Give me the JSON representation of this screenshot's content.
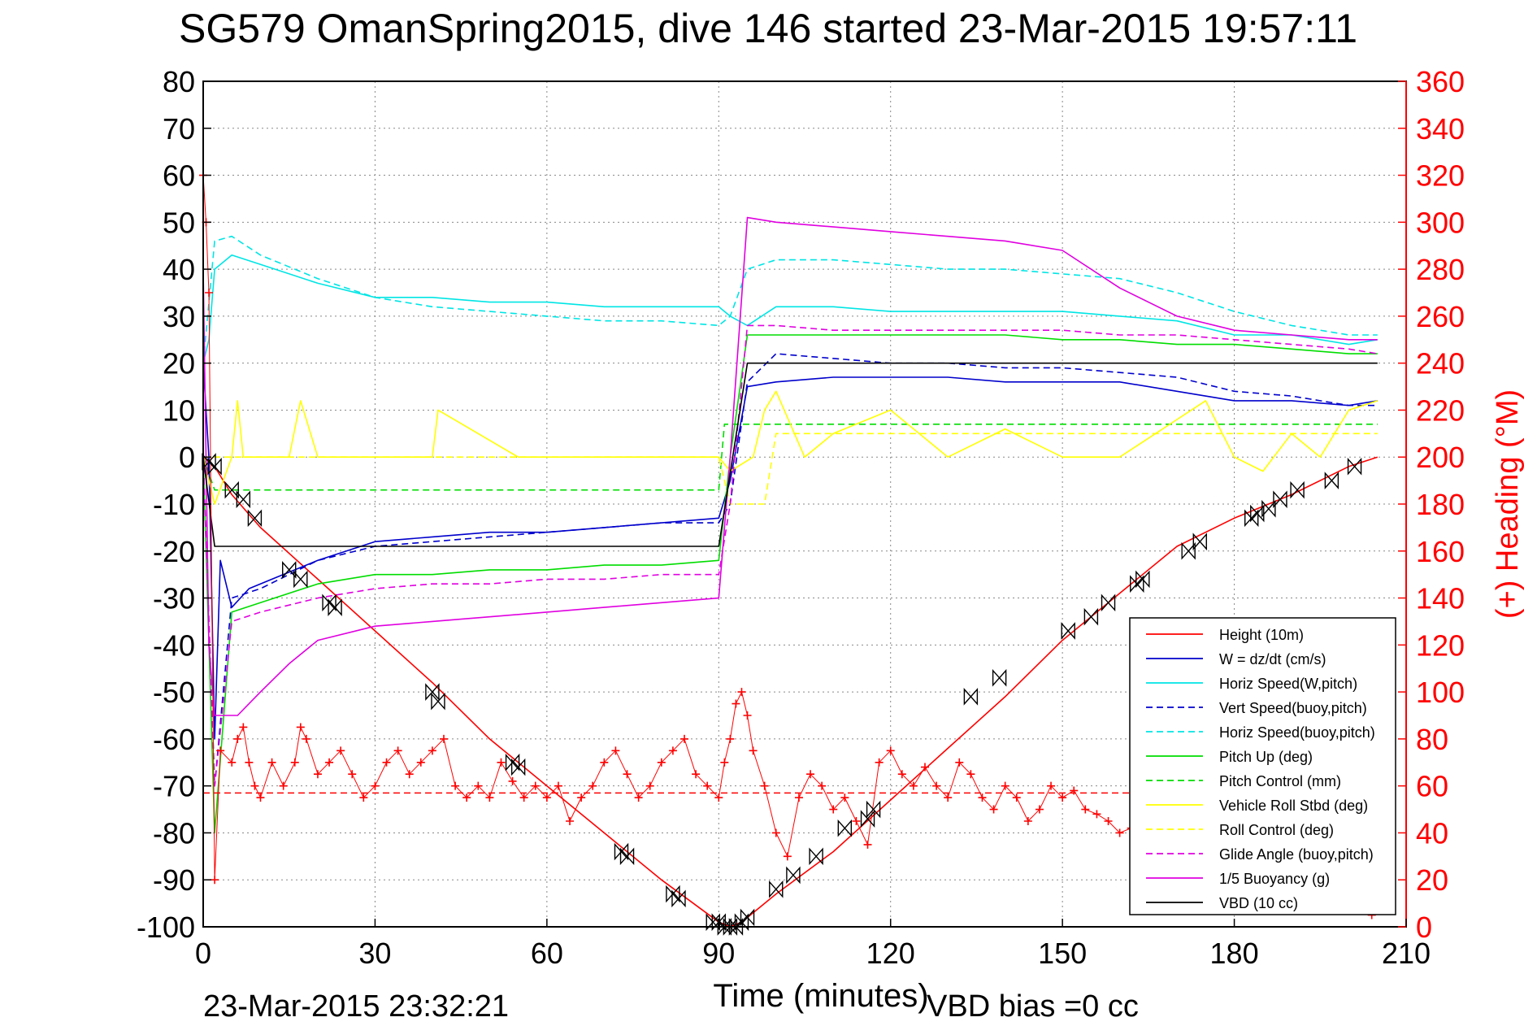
{
  "chart_data": {
    "type": "line",
    "title": "SG579 OmanSpring2015, dive 146 started 23-Mar-2015 19:57:11",
    "xlabel": "Time (minutes)",
    "ylabel_right": "(+) Heading (°M)",
    "footer_left": "23-Mar-2015 23:32:21",
    "footer_right": "VBD bias =0 cc",
    "xlim": [
      0,
      210
    ],
    "ylim_left": [
      -100,
      80
    ],
    "ylim_right": [
      0,
      360
    ],
    "xticks": [
      "0",
      "30",
      "60",
      "90",
      "120",
      "150",
      "180",
      "210"
    ],
    "yticks_left": [
      "80",
      "70",
      "60",
      "50",
      "40",
      "30",
      "20",
      "10",
      "0",
      "-10",
      "-20",
      "-30",
      "-40",
      "-50",
      "-60",
      "-70",
      "-80",
      "-90",
      "-100"
    ],
    "yticks_right": [
      "360",
      "340",
      "320",
      "300",
      "280",
      "260",
      "240",
      "220",
      "200",
      "180",
      "160",
      "140",
      "120",
      "100",
      "80",
      "60",
      "40",
      "20",
      "0"
    ],
    "grid": true,
    "legend_position": "bottom-right",
    "colors": {
      "height": "#ff0000",
      "w": "#0000cc",
      "horiz": "#00e5e5",
      "pitch": "#00dd00",
      "roll": "#ffff00",
      "buoy": "#e000e0",
      "vbd": "#000000",
      "heading": "#ff0000",
      "axis_right": "#ff0000"
    },
    "series": [
      {
        "name": "Height (10m)",
        "style": "solid",
        "color": "#ff0000",
        "x": [
          0,
          1,
          2,
          5,
          10,
          20,
          30,
          40,
          50,
          60,
          70,
          80,
          90,
          92,
          94,
          96,
          100,
          110,
          120,
          130,
          140,
          150,
          160,
          170,
          180,
          190,
          200,
          205
        ],
        "y": [
          0,
          -1,
          -2,
          -8,
          -15,
          -26,
          -37,
          -48,
          -60,
          -70,
          -80,
          -90,
          -99,
          -100,
          -99,
          -97,
          -93,
          -84,
          -73,
          -62,
          -51,
          -39,
          -29,
          -19,
          -13,
          -8,
          -2,
          0
        ]
      },
      {
        "name": "W = dz/dt (cm/s)",
        "style": "solid",
        "color": "#0000cc",
        "x": [
          0,
          1,
          2,
          3,
          5,
          8,
          12,
          20,
          30,
          40,
          50,
          60,
          70,
          80,
          90,
          92,
          95,
          100,
          110,
          120,
          130,
          140,
          150,
          160,
          170,
          180,
          190,
          200,
          205
        ],
        "y": [
          20,
          0,
          -60,
          -22,
          -32,
          -28,
          -26,
          -22,
          -18,
          -17,
          -16,
          -16,
          -15,
          -14,
          -13,
          -5,
          15,
          16,
          17,
          17,
          17,
          16,
          16,
          16,
          14,
          12,
          12,
          11,
          12
        ]
      },
      {
        "name": "Horiz Speed(W,pitch)",
        "style": "solid",
        "color": "#00e5e5",
        "x": [
          0,
          1,
          2,
          5,
          10,
          20,
          30,
          40,
          50,
          60,
          70,
          80,
          90,
          92,
          95,
          100,
          110,
          120,
          130,
          140,
          150,
          160,
          170,
          180,
          190,
          200,
          205
        ],
        "y": [
          20,
          25,
          40,
          43,
          41,
          37,
          34,
          34,
          33,
          33,
          32,
          32,
          32,
          30,
          28,
          32,
          32,
          31,
          31,
          31,
          31,
          30,
          29,
          26,
          26,
          24,
          25
        ]
      },
      {
        "name": "Vert Speed(buoy,pitch)",
        "style": "dashed",
        "color": "#0000cc",
        "x": [
          0,
          2,
          5,
          10,
          20,
          30,
          40,
          50,
          60,
          70,
          80,
          90,
          92,
          95,
          100,
          110,
          120,
          130,
          140,
          150,
          160,
          170,
          180,
          190,
          200,
          205
        ],
        "y": [
          0,
          -70,
          -30,
          -28,
          -22,
          -19,
          -18,
          -17,
          -16,
          -15,
          -14,
          -14,
          -10,
          16,
          22,
          21,
          20,
          20,
          19,
          19,
          18,
          17,
          14,
          13,
          11,
          11
        ]
      },
      {
        "name": "Horiz Speed(buoy,pitch)",
        "style": "dashed",
        "color": "#00e5e5",
        "x": [
          0,
          2,
          5,
          10,
          20,
          30,
          40,
          50,
          60,
          70,
          80,
          90,
          92,
          95,
          100,
          110,
          120,
          130,
          140,
          150,
          160,
          170,
          180,
          190,
          200,
          205
        ],
        "y": [
          20,
          46,
          47,
          43,
          38,
          34,
          32,
          31,
          30,
          29,
          29,
          28,
          30,
          40,
          42,
          42,
          41,
          40,
          40,
          39,
          38,
          35,
          31,
          28,
          26,
          26
        ]
      },
      {
        "name": "Pitch Up (deg)",
        "style": "solid",
        "color": "#00dd00",
        "x": [
          0,
          2,
          5,
          10,
          20,
          30,
          40,
          50,
          60,
          70,
          80,
          90,
          92,
          95,
          100,
          110,
          120,
          130,
          140,
          150,
          160,
          170,
          180,
          190,
          200,
          205
        ],
        "y": [
          0,
          -80,
          -33,
          -31,
          -27,
          -25,
          -25,
          -24,
          -24,
          -23,
          -23,
          -22,
          0,
          26,
          26,
          26,
          26,
          26,
          26,
          25,
          25,
          24,
          24,
          23,
          22,
          22
        ]
      },
      {
        "name": "Pitch Control (mm)",
        "style": "dashed",
        "color": "#00dd00",
        "x": [
          0,
          2,
          90,
          91,
          205
        ],
        "y": [
          0,
          -7,
          -7,
          7,
          7
        ]
      },
      {
        "name": "Vehicle Roll Stbd (deg)",
        "style": "solid",
        "color": "#ffff00",
        "x": [
          0,
          2,
          5,
          6,
          7,
          10,
          15,
          17,
          20,
          30,
          40,
          41,
          55,
          74,
          83,
          90,
          92,
          96,
          98,
          100,
          105,
          110,
          120,
          130,
          140,
          150,
          160,
          170,
          175,
          180,
          185,
          190,
          195,
          200,
          205
        ],
        "y": [
          0,
          -10,
          0,
          12,
          0,
          0,
          0,
          12,
          0,
          0,
          0,
          10,
          0,
          0,
          0,
          0,
          -3,
          0,
          10,
          14,
          0,
          5,
          10,
          0,
          6,
          0,
          0,
          8,
          12,
          0,
          -3,
          5,
          0,
          10,
          12
        ]
      },
      {
        "name": "Roll Control (deg)",
        "style": "dashed",
        "color": "#ffff00",
        "x": [
          0,
          2,
          90,
          92,
          98,
          100,
          205
        ],
        "y": [
          0,
          0,
          0,
          -10,
          -10,
          5,
          5
        ]
      },
      {
        "name": "Glide Angle (buoy,pitch)",
        "style": "dashed",
        "color": "#e000e0",
        "x": [
          0,
          2,
          5,
          10,
          20,
          30,
          40,
          50,
          60,
          70,
          80,
          90,
          92,
          95,
          100,
          110,
          120,
          130,
          140,
          150,
          160,
          170,
          180,
          190,
          200,
          205
        ],
        "y": [
          0,
          -70,
          -35,
          -33,
          -30,
          -28,
          -27,
          -27,
          -26,
          -26,
          -25,
          -25,
          -10,
          28,
          28,
          27,
          27,
          27,
          27,
          27,
          26,
          26,
          25,
          24,
          23,
          22
        ]
      },
      {
        "name": "1/5 Buoyancy (g)",
        "style": "solid",
        "color": "#e000e0",
        "x": [
          0,
          1,
          2,
          6,
          10,
          15,
          20,
          30,
          40,
          50,
          60,
          70,
          80,
          90,
          92,
          95,
          100,
          110,
          120,
          130,
          140,
          150,
          160,
          170,
          180,
          190,
          200,
          205
        ],
        "y": [
          40,
          -40,
          -55,
          -55,
          -50,
          -44,
          -39,
          -36,
          -35,
          -34,
          -33,
          -32,
          -31,
          -30,
          0,
          51,
          50,
          49,
          48,
          47,
          46,
          44,
          36,
          30,
          27,
          26,
          25,
          25
        ]
      },
      {
        "name": "VBD (10 cc)",
        "style": "solid",
        "color": "#000000",
        "x": [
          0,
          2,
          90,
          95,
          205
        ],
        "y": [
          0,
          -19,
          -19,
          20,
          20
        ]
      }
    ],
    "height_markers": {
      "x": [
        1,
        2,
        5,
        7,
        9,
        15,
        17,
        22,
        23,
        40,
        41,
        54,
        55,
        73,
        74,
        82,
        83,
        89,
        90,
        91,
        92,
        93,
        94,
        95,
        100,
        103,
        107,
        112,
        116,
        117,
        134,
        139,
        151,
        155,
        158,
        163,
        164,
        172,
        174,
        183,
        184,
        186,
        188,
        191,
        197,
        201
      ],
      "y": [
        -1,
        -2,
        -7,
        -9,
        -13,
        -24,
        -26,
        -31,
        -32,
        -50,
        -52,
        -65,
        -66,
        -84,
        -85,
        -93,
        -94,
        -99,
        -99,
        -100,
        -100,
        -100,
        -99,
        -98,
        -92,
        -89,
        -85,
        -79,
        -77,
        -75,
        -51,
        -47,
        -37,
        -34,
        -31,
        -27,
        -26,
        -20,
        -18,
        -13,
        -12,
        -11,
        -9,
        -7,
        -5,
        -2
      ]
    },
    "heading": {
      "name": "(+) Heading",
      "mean": 57,
      "x": [
        0,
        0.5,
        1,
        2,
        3,
        5,
        6,
        7,
        8,
        9,
        10,
        12,
        14,
        16,
        17,
        18,
        20,
        22,
        24,
        26,
        28,
        30,
        32,
        34,
        36,
        38,
        40,
        42,
        44,
        46,
        48,
        50,
        52,
        54,
        56,
        58,
        60,
        62,
        64,
        66,
        68,
        70,
        72,
        74,
        76,
        78,
        80,
        82,
        84,
        86,
        88,
        90,
        91,
        92,
        93,
        94,
        95,
        96,
        98,
        100,
        102,
        104,
        106,
        108,
        110,
        112,
        114,
        116,
        118,
        120,
        122,
        124,
        126,
        128,
        130,
        132,
        134,
        136,
        138,
        140,
        142,
        144,
        146,
        148,
        150,
        152,
        154,
        156,
        158,
        160,
        162,
        165,
        168,
        170,
        172,
        175,
        178,
        180,
        182,
        185,
        188,
        190,
        192,
        195,
        198,
        200,
        202,
        203,
        204
      ],
      "y": [
        320,
        300,
        270,
        20,
        75,
        70,
        80,
        85,
        70,
        60,
        55,
        70,
        60,
        70,
        85,
        80,
        65,
        70,
        75,
        65,
        55,
        60,
        70,
        75,
        65,
        70,
        75,
        80,
        60,
        55,
        60,
        55,
        70,
        62,
        55,
        60,
        55,
        60,
        45,
        55,
        60,
        70,
        75,
        65,
        55,
        60,
        70,
        75,
        80,
        65,
        60,
        55,
        70,
        80,
        95,
        100,
        90,
        75,
        60,
        40,
        30,
        55,
        65,
        60,
        50,
        55,
        45,
        35,
        70,
        75,
        65,
        60,
        68,
        60,
        55,
        70,
        65,
        55,
        50,
        60,
        55,
        45,
        50,
        60,
        55,
        58,
        50,
        48,
        45,
        40,
        42,
        40,
        38,
        40,
        38,
        35,
        38,
        40,
        42,
        38,
        40,
        38,
        35,
        40,
        38,
        40,
        38,
        20,
        5
      ]
    }
  }
}
